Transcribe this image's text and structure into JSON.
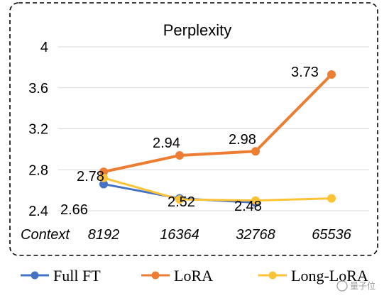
{
  "chart_data": {
    "type": "line",
    "title": "Perplexity",
    "xlabel": "Context",
    "ylabel": "",
    "categories": [
      "8192",
      "16364",
      "32768",
      "65536"
    ],
    "ylim": [
      2.4,
      4.0
    ],
    "yticks": [
      "2.4",
      "2.8",
      "3.2",
      "3.6",
      "4"
    ],
    "grid": true,
    "legend_position": "bottom",
    "series": [
      {
        "name": "Full FT",
        "color": "#4472c4",
        "values": [
          2.66,
          2.52,
          2.48,
          null
        ]
      },
      {
        "name": "LoRA",
        "color": "#ed7d31",
        "values": [
          2.78,
          2.94,
          2.98,
          3.73
        ]
      },
      {
        "name": "Long-LoRA",
        "color": "#fbc335",
        "values": [
          2.72,
          2.51,
          2.5,
          2.52
        ]
      }
    ],
    "data_labels": [
      {
        "text": "2.78"
      },
      {
        "text": "2.94"
      },
      {
        "text": "2.98"
      },
      {
        "text": "3.73"
      },
      {
        "text": "2.66"
      },
      {
        "text": "2.52"
      },
      {
        "text": "2.48"
      }
    ]
  },
  "watermark": {
    "text": "量子位"
  }
}
